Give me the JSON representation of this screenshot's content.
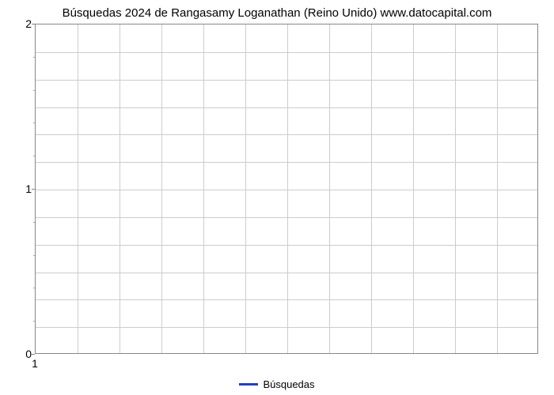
{
  "chart": {
    "type": "line",
    "title": "Búsquedas 2024 de Rangasamy Loganathan (Reino Unido) www.datocapital.com",
    "title_fontsize": 15,
    "title_color": "#000000",
    "background_color": "#ffffff",
    "plot_border_color": "#888888",
    "grid_color": "#cccccc",
    "series": [
      {
        "name": "Búsquedas",
        "color": "#2040c0",
        "values": []
      }
    ],
    "xaxis": {
      "ticks": [
        1
      ],
      "tick_labels": [
        "1"
      ],
      "grid_lines": 11,
      "tick_fontsize": 14,
      "tick_color": "#000000"
    },
    "yaxis": {
      "min": 0,
      "max": 2,
      "major_ticks": [
        0,
        1,
        2
      ],
      "major_labels": [
        "0",
        "1",
        "2"
      ],
      "minor_ticks_per_interval": 4,
      "grid_lines": 11,
      "tick_fontsize": 14,
      "tick_color": "#000000"
    },
    "legend": {
      "position": "bottom-center",
      "items": [
        {
          "label": "Búsquedas",
          "color": "#2040c0"
        }
      ],
      "fontsize": 13
    }
  }
}
